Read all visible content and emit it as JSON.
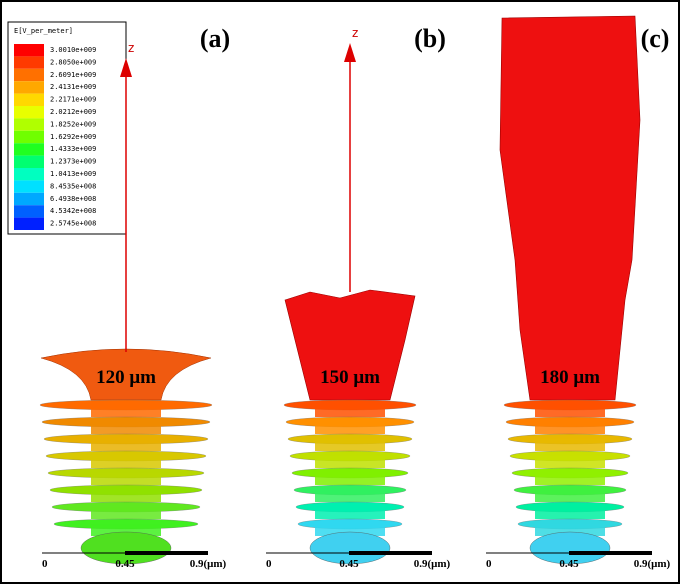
{
  "legend": {
    "title": "E[V_per_meter]",
    "items": [
      {
        "label": "3.0010e+009",
        "color": "#ff0000"
      },
      {
        "label": "2.8050e+009",
        "color": "#ff3a00"
      },
      {
        "label": "2.6091e+009",
        "color": "#ff7000"
      },
      {
        "label": "2.4131e+009",
        "color": "#ffa800"
      },
      {
        "label": "2.2171e+009",
        "color": "#ffd800"
      },
      {
        "label": "2.0212e+009",
        "color": "#e8ff00"
      },
      {
        "label": "1.8252e+009",
        "color": "#b0ff00"
      },
      {
        "label": "1.6292e+009",
        "color": "#70ff00"
      },
      {
        "label": "1.4333e+009",
        "color": "#20ff20"
      },
      {
        "label": "1.2373e+009",
        "color": "#00ff70"
      },
      {
        "label": "1.0413e+009",
        "color": "#00ffc0"
      },
      {
        "label": "8.4535e+008",
        "color": "#00e0ff"
      },
      {
        "label": "6.4938e+008",
        "color": "#00a8ff"
      },
      {
        "label": "4.5342e+008",
        "color": "#0060ff"
      },
      {
        "label": "2.5745e+008",
        "color": "#0020ff"
      }
    ]
  },
  "panels": [
    {
      "label": "(a)",
      "axis": "z",
      "length": "120 μm",
      "scale": [
        "0",
        "0.45",
        "0.9(μm)"
      ]
    },
    {
      "label": "(b)",
      "axis": "z",
      "length": "150 μm",
      "scale": [
        "0",
        "0.45",
        "0.9(μm)"
      ]
    },
    {
      "label": "(c)",
      "length": "180 μm",
      "scale": [
        "0",
        "0.45",
        "0.9(μm)"
      ]
    }
  ]
}
